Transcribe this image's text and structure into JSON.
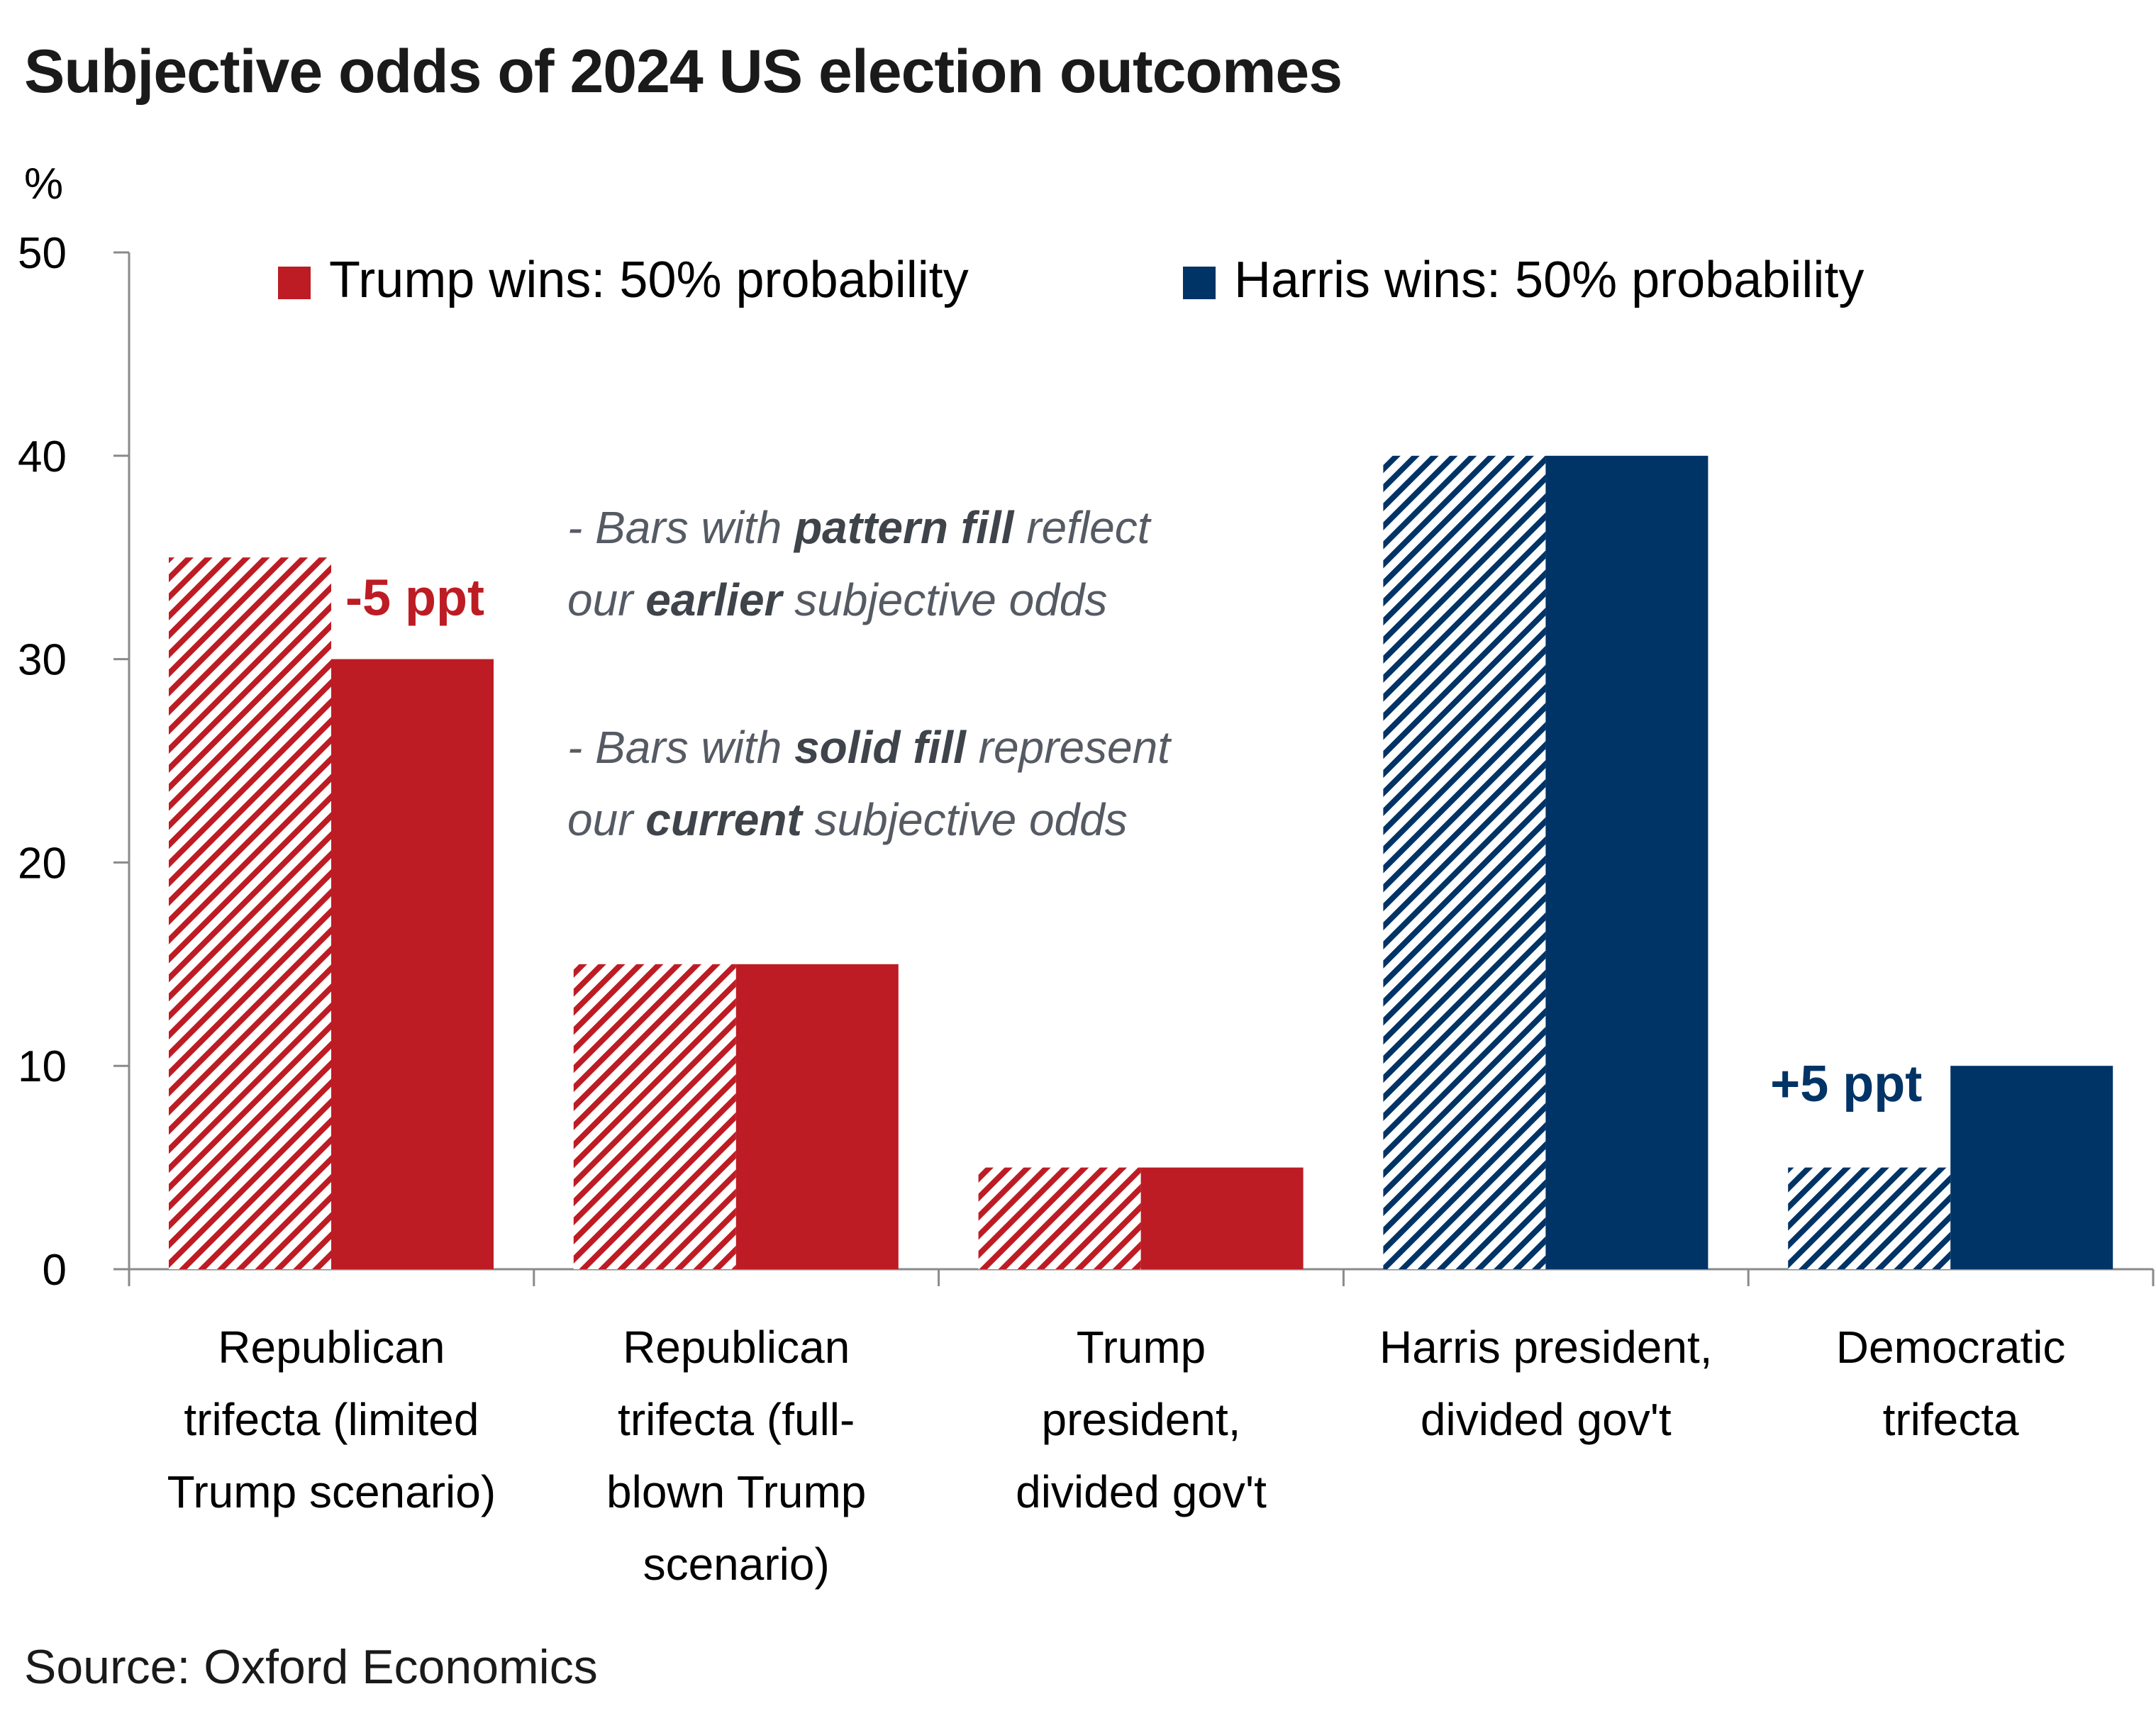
{
  "title": "Subjective odds of 2024 US election outcomes",
  "source": "Source: Oxford Economics",
  "colors": {
    "trump": "#bd1c24",
    "harris": "#003366",
    "note": "#555a63"
  },
  "chart_data": {
    "type": "bar",
    "title": "Subjective odds of 2024 US election outcomes",
    "ylabel": "%",
    "ylim": [
      0,
      50
    ],
    "yticks": [
      0,
      10,
      20,
      30,
      40,
      50
    ],
    "grid": false,
    "categories": [
      "Republican trifecta (limited Trump scenario)",
      "Republican trifecta (full-blown Trump scenario)",
      "Trump president, divided gov't",
      "Harris president, divided gov't",
      "Democratic trifecta"
    ],
    "category_lines": [
      [
        "Republican",
        "trifecta (limited",
        "Trump scenario)"
      ],
      [
        "Republican",
        "trifecta (full-",
        "blown Trump",
        "scenario)"
      ],
      [
        "Trump",
        "president,",
        "divided gov't"
      ],
      [
        "Harris president,",
        "divided gov't"
      ],
      [
        "Democratic",
        "trifecta"
      ]
    ],
    "series": [
      {
        "name": "Earlier subjective odds (pattern fill)",
        "values": [
          35,
          15,
          5,
          40,
          5
        ]
      },
      {
        "name": "Current subjective odds (solid fill)",
        "values": [
          30,
          15,
          5,
          40,
          10
        ]
      }
    ],
    "bar_party": [
      "trump",
      "trump",
      "trump",
      "harris",
      "harris"
    ],
    "legend": [
      {
        "label": "Trump wins: 50% probability",
        "party": "trump"
      },
      {
        "label": "Harris wins: 50% probability",
        "party": "harris"
      }
    ],
    "legend_position": "top",
    "annotations": [
      {
        "text": "-5 ppt",
        "category": 0,
        "party": "trump"
      },
      {
        "text": "+5 ppt",
        "category": 4,
        "party": "harris"
      }
    ],
    "notes": [
      {
        "line1": [
          "- Bars with ",
          "pattern fill",
          " reflect"
        ],
        "line2": [
          "our ",
          "earlier",
          " subjective odds"
        ]
      },
      {
        "line1": [
          "- Bars with ",
          "solid fill",
          " represent"
        ],
        "line2": [
          "our ",
          "current",
          " subjective odds"
        ]
      }
    ]
  }
}
